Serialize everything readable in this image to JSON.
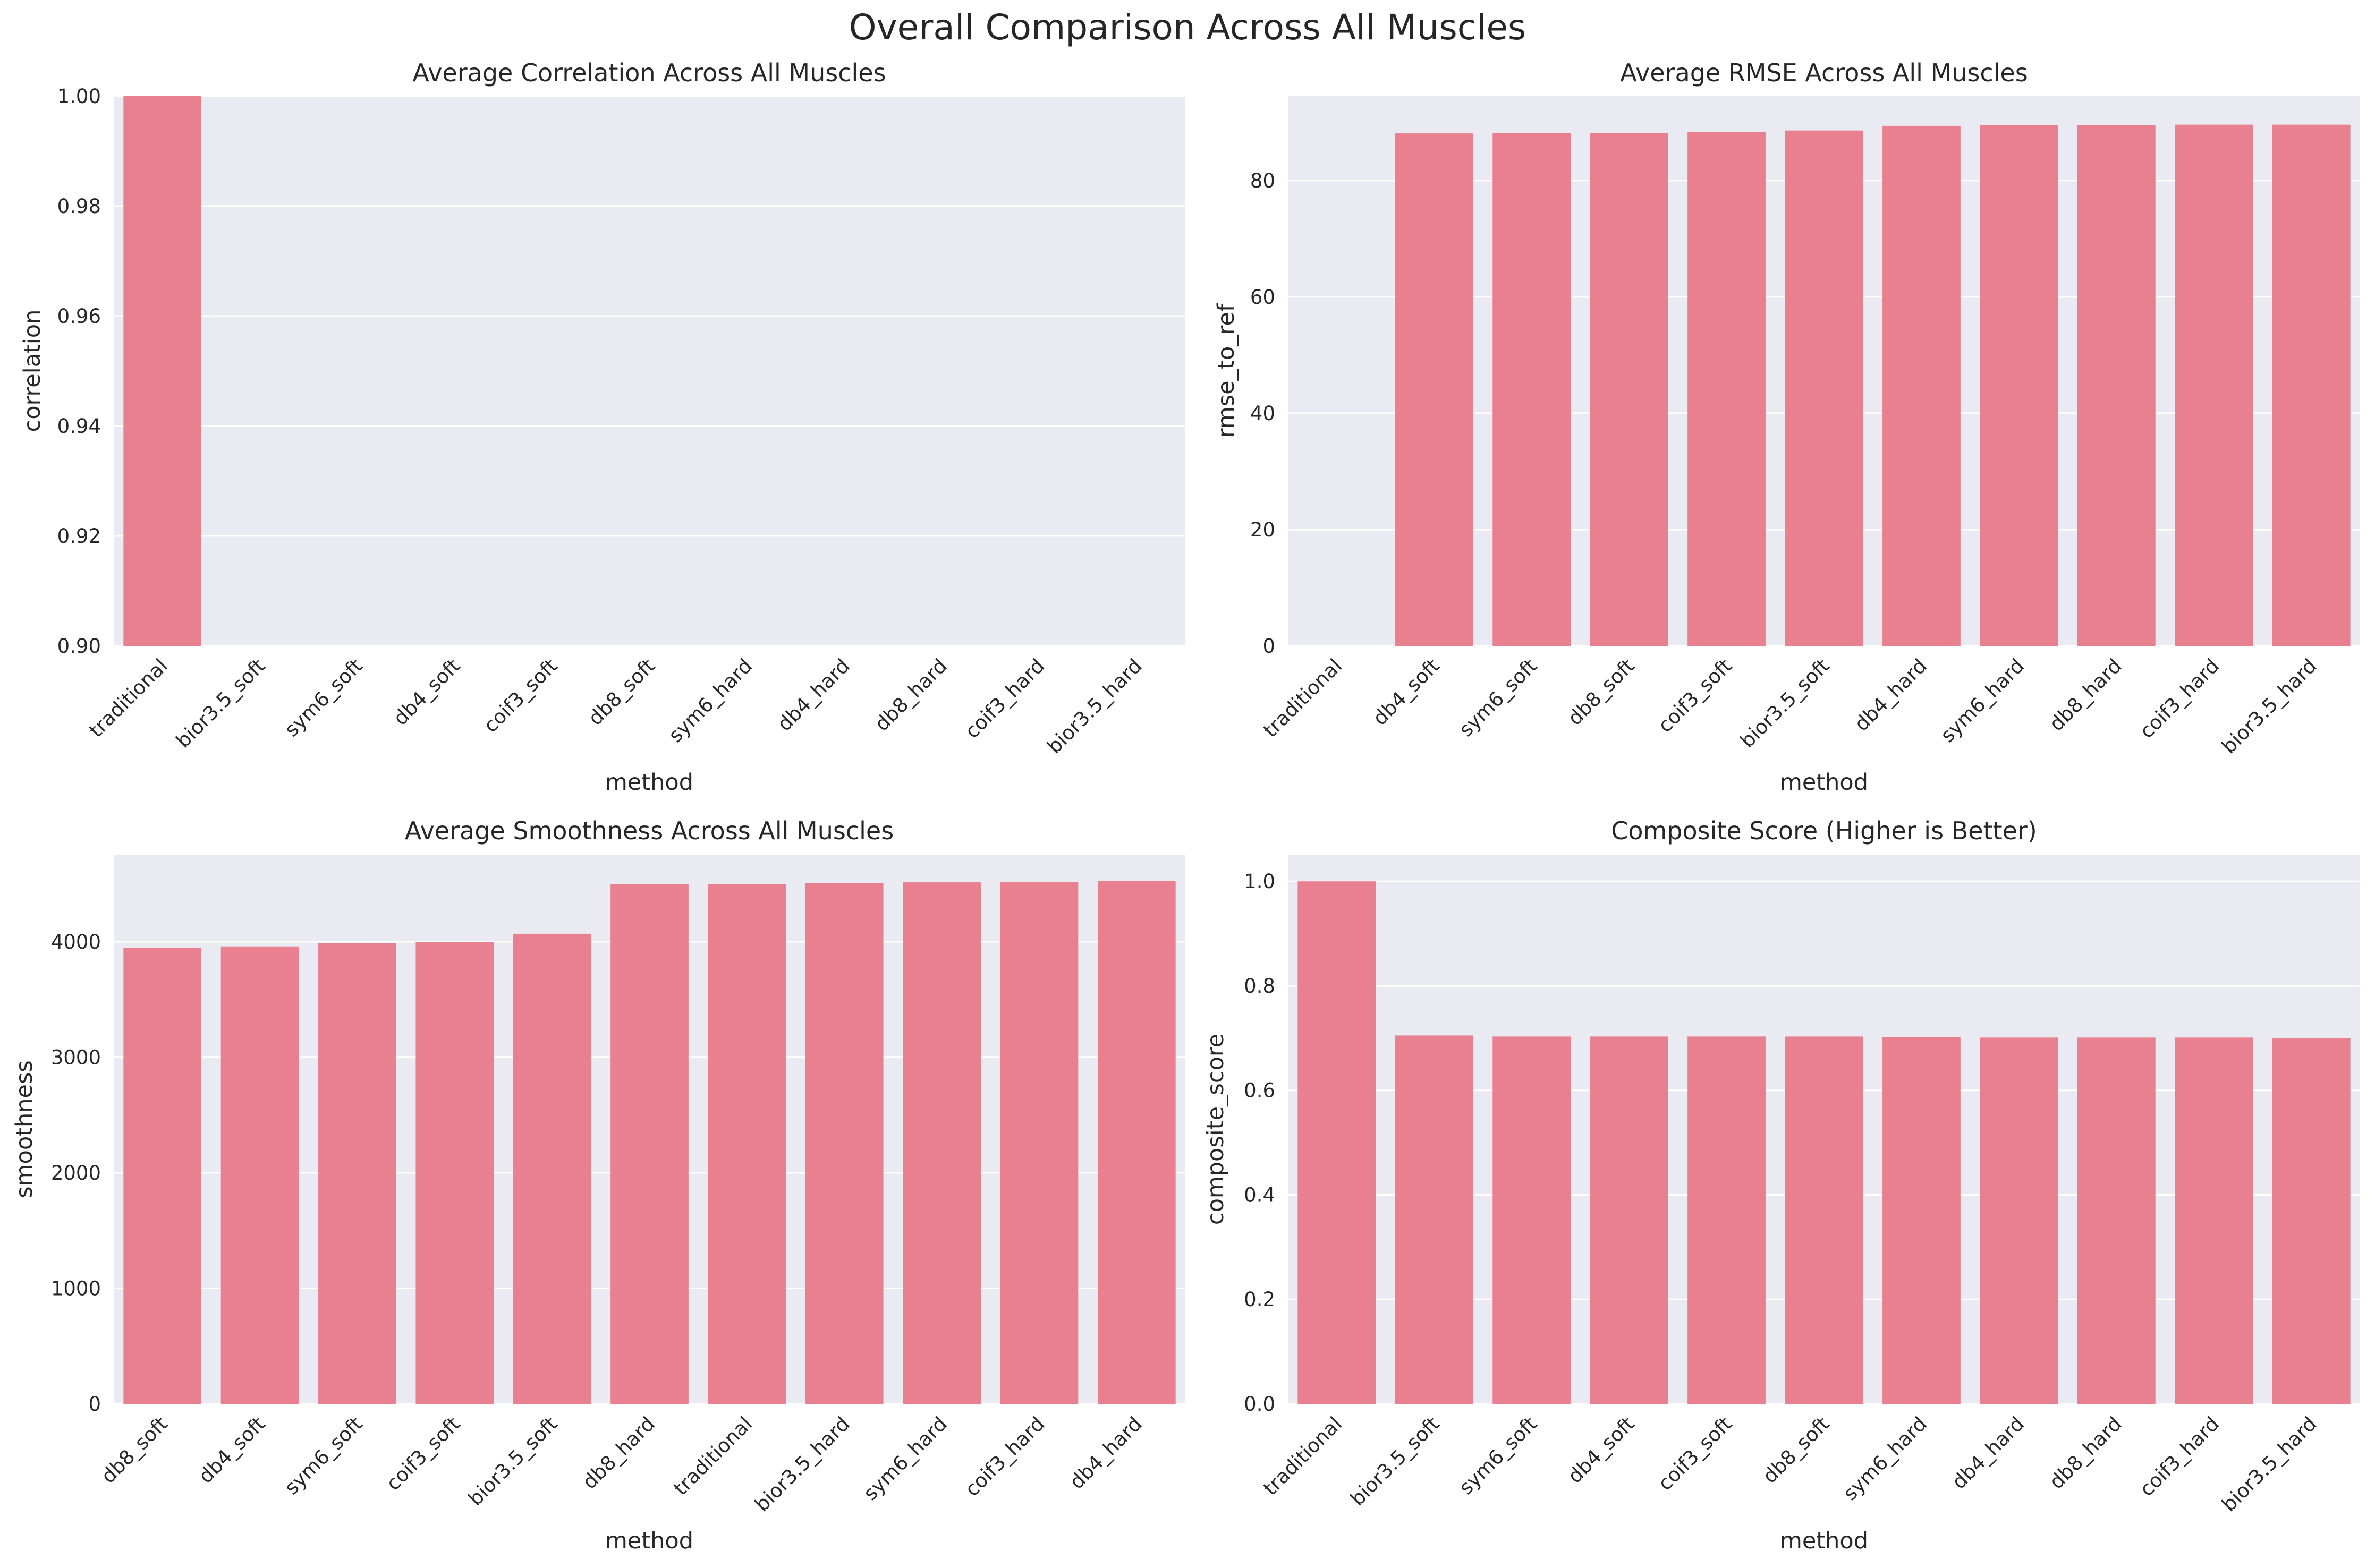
{
  "figure": {
    "title": "Overall Comparison Across All Muscles",
    "colors": {
      "bar": "#e8808f",
      "axes_bg": "#eaeaf2",
      "grid": "#ffffff",
      "text": "#262626"
    }
  },
  "chart_data": [
    {
      "type": "bar",
      "title": "Average Correlation Across All Muscles",
      "xlabel": "method",
      "ylabel": "correlation",
      "categories": [
        "traditional",
        "bior3.5_soft",
        "sym6_soft",
        "db4_soft",
        "coif3_soft",
        "db8_soft",
        "sym6_hard",
        "db4_hard",
        "db8_hard",
        "coif3_hard",
        "bior3.5_hard"
      ],
      "values": [
        1.0,
        0.0,
        0.0,
        0.0,
        0.0,
        0.0,
        0.0,
        0.0,
        0.0,
        0.0,
        0.0
      ],
      "ylim": [
        0.9,
        1.0
      ],
      "yticks": [
        0.9,
        0.92,
        0.94,
        0.96,
        0.98,
        1.0
      ],
      "ytick_labels": [
        "0.90",
        "0.92",
        "0.94",
        "0.96",
        "0.98",
        "1.00"
      ],
      "grid": true
    },
    {
      "type": "bar",
      "title": "Average RMSE Across All Muscles",
      "xlabel": "method",
      "ylabel": "rmse_to_ref",
      "categories": [
        "traditional",
        "db4_soft",
        "sym6_soft",
        "db8_soft",
        "coif3_soft",
        "bior3.5_soft",
        "db4_hard",
        "sym6_hard",
        "db8_hard",
        "coif3_hard",
        "bior3.5_hard"
      ],
      "values": [
        0.0,
        88.1,
        88.2,
        88.2,
        88.3,
        88.6,
        89.4,
        89.5,
        89.5,
        89.6,
        89.6
      ],
      "ylim": [
        0,
        94.5
      ],
      "yticks": [
        0,
        20,
        40,
        60,
        80
      ],
      "ytick_labels": [
        "0",
        "20",
        "40",
        "60",
        "80"
      ],
      "grid": true
    },
    {
      "type": "bar",
      "title": "Average Smoothness Across All Muscles",
      "xlabel": "method",
      "ylabel": "smoothness",
      "categories": [
        "db8_soft",
        "db4_soft",
        "sym6_soft",
        "coif3_soft",
        "bior3.5_soft",
        "db8_hard",
        "traditional",
        "bior3.5_hard",
        "sym6_hard",
        "coif3_hard",
        "db4_hard"
      ],
      "values": [
        3950,
        3960,
        3990,
        4000,
        4070,
        4500,
        4500,
        4510,
        4515,
        4520,
        4525
      ],
      "ylim": [
        0,
        4750
      ],
      "yticks": [
        0,
        1000,
        2000,
        3000,
        4000
      ],
      "ytick_labels": [
        "0",
        "1000",
        "2000",
        "3000",
        "4000"
      ],
      "grid": true
    },
    {
      "type": "bar",
      "title": "Composite Score (Higher is Better)",
      "xlabel": "method",
      "ylabel": "composite_score",
      "categories": [
        "traditional",
        "bior3.5_soft",
        "sym6_soft",
        "db4_soft",
        "coif3_soft",
        "db8_soft",
        "sym6_hard",
        "db4_hard",
        "db8_hard",
        "coif3_hard",
        "bior3.5_hard"
      ],
      "values": [
        1.0,
        0.705,
        0.703,
        0.703,
        0.703,
        0.703,
        0.702,
        0.701,
        0.701,
        0.701,
        0.7
      ],
      "ylim": [
        0,
        1.05
      ],
      "yticks": [
        0,
        0.2,
        0.4,
        0.6,
        0.8,
        1.0
      ],
      "ytick_labels": [
        "0.0",
        "0.2",
        "0.4",
        "0.6",
        "0.8",
        "1.0"
      ],
      "grid": true
    }
  ]
}
